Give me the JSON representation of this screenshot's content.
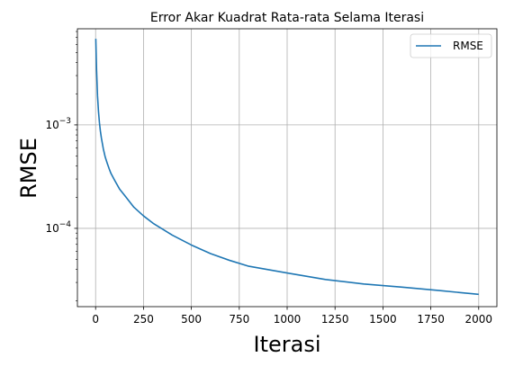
{
  "chart_data": {
    "type": "line",
    "title": "Error Akar Kuadrat Rata-rata Selama Iterasi",
    "xlabel": "Iterasi",
    "ylabel": "RMSE",
    "xlim": [
      -95,
      2095
    ],
    "ylim": [
      1.75e-05,
      0.0085
    ],
    "yscale": "log",
    "grid": true,
    "legend_position": "top-right",
    "x_ticks": [
      0,
      250,
      500,
      750,
      1000,
      1250,
      1500,
      1750,
      2000
    ],
    "x_tick_labels": [
      "0",
      "250",
      "500",
      "750",
      "1000",
      "1250",
      "1500",
      "1750",
      "2000"
    ],
    "y_ticks": [
      {
        "value": 0.001,
        "base": "10",
        "exp": "−3"
      },
      {
        "value": 0.0001,
        "base": "10",
        "exp": "−4"
      }
    ],
    "series": [
      {
        "name": "RMSE",
        "color": "#1f77b4",
        "x": [
          1,
          5,
          10,
          15,
          20,
          25,
          30,
          40,
          50,
          60,
          70,
          80,
          100,
          125,
          150,
          200,
          250,
          300,
          400,
          500,
          600,
          700,
          800,
          1000,
          1200,
          1400,
          1600,
          1800,
          2000
        ],
        "y": [
          0.0068,
          0.0034,
          0.0019,
          0.00135,
          0.00105,
          0.00087,
          0.00075,
          0.00059,
          0.00049,
          0.00043,
          0.00038,
          0.00034,
          0.00029,
          0.00024,
          0.00021,
          0.00016,
          0.000132,
          0.000112,
          8.6e-05,
          6.9e-05,
          5.7e-05,
          4.9e-05,
          4.3e-05,
          3.7e-05,
          3.2e-05,
          2.9e-05,
          2.7e-05,
          2.5e-05,
          2.3e-05
        ]
      }
    ]
  }
}
